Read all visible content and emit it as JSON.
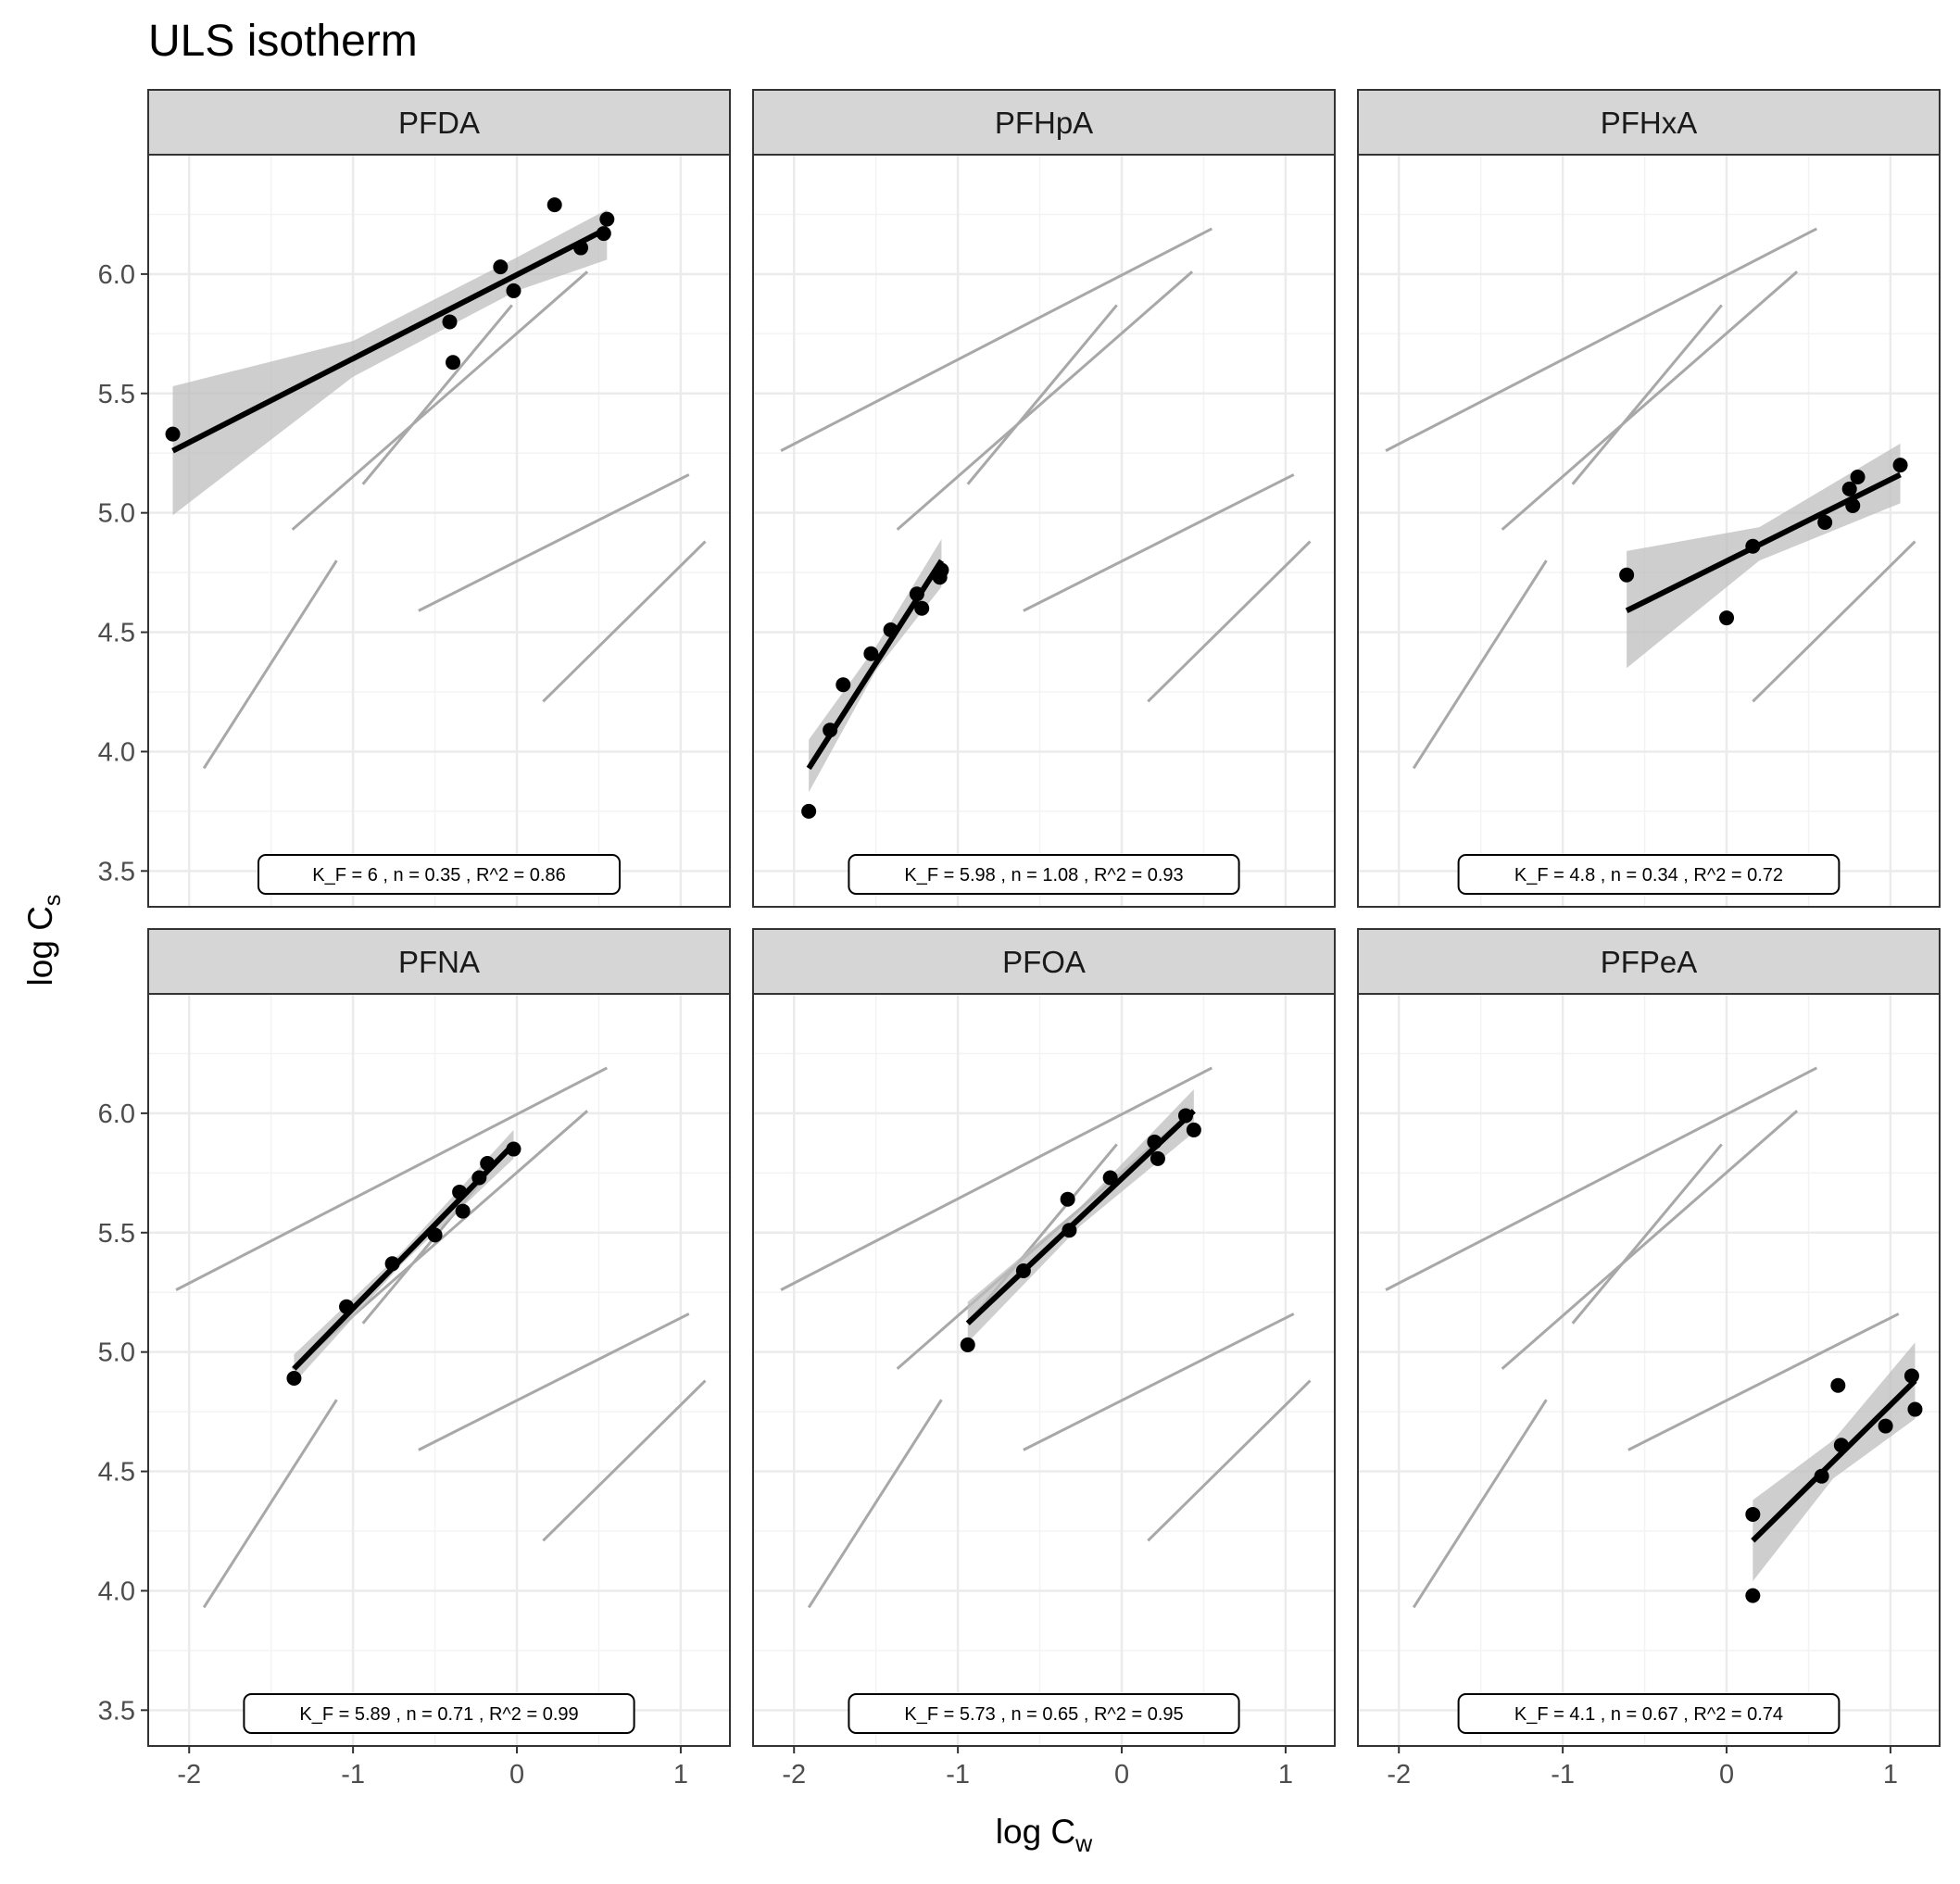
{
  "chart_data": {
    "type": "scatter",
    "title": "ULS isotherm",
    "xlabel": {
      "main": "log C",
      "sub": "w"
    },
    "ylabel": {
      "main": "log C",
      "sub": "s"
    },
    "xlim": [
      -2.25,
      1.3
    ],
    "ylim": [
      3.35,
      6.5
    ],
    "x_ticks": [
      -2,
      -1,
      0,
      1
    ],
    "x_tick_labels": [
      "-2",
      "-1",
      "0",
      "1"
    ],
    "y_ticks": [
      3.5,
      4.0,
      4.5,
      5.0,
      5.5,
      6.0
    ],
    "y_tick_labels": [
      "3.5",
      "4.0",
      "4.5",
      "5.0",
      "5.5",
      "6.0"
    ],
    "grid": true,
    "colors": {
      "points": "#000000",
      "fit_line": "#000000",
      "ci_band": "#bdbdbd",
      "background_lines": "#a8a8a8",
      "strip": "#d6d6d6",
      "grid": "#ebebeb",
      "border": "#333333"
    },
    "background_lines": [
      {
        "x": [
          -2.08,
          0.55
        ],
        "y": [
          5.26,
          6.19
        ]
      },
      {
        "x": [
          -1.37,
          0.43
        ],
        "y": [
          4.93,
          6.01
        ]
      },
      {
        "x": [
          -0.94,
          -0.03
        ],
        "y": [
          5.12,
          5.87
        ]
      },
      {
        "x": [
          -1.91,
          -1.1
        ],
        "y": [
          3.93,
          4.8
        ]
      },
      {
        "x": [
          -0.6,
          1.05
        ],
        "y": [
          4.59,
          5.16
        ]
      },
      {
        "x": [
          0.16,
          1.15
        ],
        "y": [
          4.21,
          4.88
        ]
      }
    ],
    "panels": [
      {
        "name": "PFDA",
        "label": "K_F = 6 ,   n = 0.35 ,   R^2 = 0.86",
        "points": [
          {
            "x": -2.1,
            "y": 5.33
          },
          {
            "x": -0.41,
            "y": 5.8
          },
          {
            "x": -0.39,
            "y": 5.63
          },
          {
            "x": -0.1,
            "y": 6.03
          },
          {
            "x": -0.02,
            "y": 5.93
          },
          {
            "x": 0.23,
            "y": 6.29
          },
          {
            "x": 0.39,
            "y": 6.11
          },
          {
            "x": 0.53,
            "y": 6.17
          },
          {
            "x": 0.55,
            "y": 6.23
          }
        ],
        "fit": {
          "x": [
            -2.1,
            0.55
          ],
          "y": [
            5.26,
            6.19
          ]
        },
        "ci": {
          "x": [
            -2.1,
            -1.0,
            0.0,
            0.55
          ],
          "lower": [
            4.99,
            5.57,
            5.93,
            6.06
          ],
          "upper": [
            5.53,
            5.72,
            6.07,
            6.27
          ]
        }
      },
      {
        "name": "PFHpA",
        "label": "K_F = 5.98 ,   n = 1.08 ,   R^2 = 0.93",
        "points": [
          {
            "x": -1.91,
            "y": 3.75
          },
          {
            "x": -1.78,
            "y": 4.09
          },
          {
            "x": -1.7,
            "y": 4.28
          },
          {
            "x": -1.53,
            "y": 4.41
          },
          {
            "x": -1.41,
            "y": 4.51
          },
          {
            "x": -1.25,
            "y": 4.66
          },
          {
            "x": -1.22,
            "y": 4.6
          },
          {
            "x": -1.11,
            "y": 4.73
          },
          {
            "x": -1.1,
            "y": 4.76
          }
        ],
        "fit": {
          "x": [
            -1.91,
            -1.1
          ],
          "y": [
            3.93,
            4.8
          ]
        },
        "ci": {
          "x": [
            -1.91,
            -1.5,
            -1.1
          ],
          "lower": [
            3.83,
            4.34,
            4.69
          ],
          "upper": [
            4.05,
            4.44,
            4.89
          ]
        }
      },
      {
        "name": "PFHxA",
        "label": "K_F = 4.8 ,   n = 0.34 ,   R^2 = 0.72",
        "points": [
          {
            "x": -0.61,
            "y": 4.74
          },
          {
            "x": 0.0,
            "y": 4.56
          },
          {
            "x": 0.16,
            "y": 4.86
          },
          {
            "x": 0.6,
            "y": 4.96
          },
          {
            "x": 0.75,
            "y": 5.1
          },
          {
            "x": 0.77,
            "y": 5.03
          },
          {
            "x": 0.8,
            "y": 5.15
          },
          {
            "x": 1.06,
            "y": 5.2
          }
        ],
        "fit": {
          "x": [
            -0.61,
            1.06
          ],
          "y": [
            4.59,
            5.16
          ]
        },
        "ci": {
          "x": [
            -0.61,
            0.2,
            1.06
          ],
          "lower": [
            4.35,
            4.8,
            5.04
          ],
          "upper": [
            4.84,
            4.94,
            5.29
          ]
        }
      },
      {
        "name": "PFNA",
        "label": "K_F = 5.89 ,   n = 0.71 ,   R^2 = 0.99",
        "points": [
          {
            "x": -1.36,
            "y": 4.89
          },
          {
            "x": -1.04,
            "y": 5.19
          },
          {
            "x": -0.76,
            "y": 5.37
          },
          {
            "x": -0.5,
            "y": 5.49
          },
          {
            "x": -0.35,
            "y": 5.67
          },
          {
            "x": -0.33,
            "y": 5.59
          },
          {
            "x": -0.23,
            "y": 5.73
          },
          {
            "x": -0.18,
            "y": 5.79
          },
          {
            "x": -0.02,
            "y": 5.85
          }
        ],
        "fit": {
          "x": [
            -1.36,
            -0.02
          ],
          "y": [
            4.93,
            5.87
          ]
        },
        "ci": {
          "x": [
            -1.36,
            -0.7,
            -0.02
          ],
          "lower": [
            4.87,
            5.37,
            5.81
          ],
          "upper": [
            4.99,
            5.42,
            5.93
          ]
        }
      },
      {
        "name": "PFOA",
        "label": "K_F = 5.73 ,   n = 0.65 ,   R^2 = 0.95",
        "points": [
          {
            "x": -0.94,
            "y": 5.03
          },
          {
            "x": -0.6,
            "y": 5.34
          },
          {
            "x": -0.33,
            "y": 5.64
          },
          {
            "x": -0.32,
            "y": 5.51
          },
          {
            "x": -0.07,
            "y": 5.73
          },
          {
            "x": 0.2,
            "y": 5.88
          },
          {
            "x": 0.22,
            "y": 5.81
          },
          {
            "x": 0.39,
            "y": 5.99
          },
          {
            "x": 0.44,
            "y": 5.93
          }
        ],
        "fit": {
          "x": [
            -0.94,
            0.44
          ],
          "y": [
            5.12,
            6.01
          ]
        },
        "ci": {
          "x": [
            -0.94,
            -0.25,
            0.44
          ],
          "lower": [
            5.04,
            5.53,
            5.92
          ],
          "upper": [
            5.21,
            5.61,
            6.1
          ]
        }
      },
      {
        "name": "PFPeA",
        "label": "K_F = 4.1 ,   n = 0.67 ,   R^2 = 0.74",
        "points": [
          {
            "x": 0.16,
            "y": 4.32
          },
          {
            "x": 0.16,
            "y": 3.98
          },
          {
            "x": 0.58,
            "y": 4.48
          },
          {
            "x": 0.68,
            "y": 4.86
          },
          {
            "x": 0.7,
            "y": 4.61
          },
          {
            "x": 0.97,
            "y": 4.69
          },
          {
            "x": 1.13,
            "y": 4.9
          },
          {
            "x": 1.15,
            "y": 4.76
          }
        ],
        "fit": {
          "x": [
            0.16,
            1.15
          ],
          "y": [
            4.21,
            4.88
          ]
        },
        "ci": {
          "x": [
            0.16,
            0.65,
            1.15
          ],
          "lower": [
            4.04,
            4.47,
            4.72
          ],
          "upper": [
            4.38,
            4.63,
            5.04
          ]
        }
      }
    ]
  }
}
